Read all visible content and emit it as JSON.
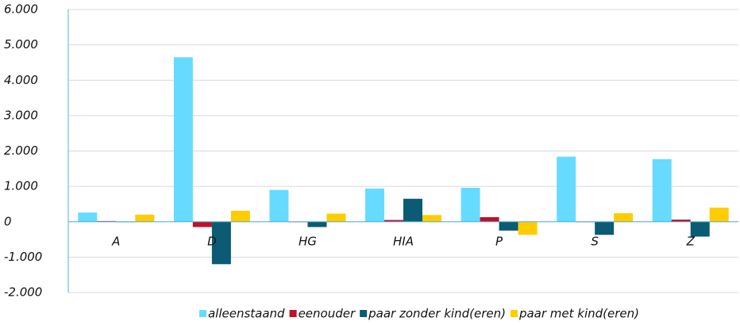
{
  "chart_data": {
    "type": "bar",
    "categories": [
      "A",
      "D",
      "HG",
      "HIA",
      "P",
      "S",
      "Z"
    ],
    "series": [
      {
        "name": "alleenstaand",
        "color": "#66dbff",
        "values": [
          260,
          4650,
          900,
          940,
          960,
          1840,
          1770
        ]
      },
      {
        "name": "eenouder",
        "color": "#c0102a",
        "values": [
          20,
          -150,
          0,
          50,
          130,
          0,
          60
        ]
      },
      {
        "name": "paar zonder kind(eren)",
        "color": "#0b5b74",
        "values": [
          0,
          -1200,
          -150,
          650,
          -250,
          -370,
          -420
        ]
      },
      {
        "name": "paar met kind(eren)",
        "color": "#ffcc00",
        "values": [
          200,
          310,
          230,
          190,
          -370,
          240,
          400
        ]
      }
    ],
    "ylim": [
      -2000,
      6000
    ],
    "yticks": [
      {
        "value": -2000,
        "label": "-2.000"
      },
      {
        "value": -1000,
        "label": "-1.000"
      },
      0,
      {
        "value": 1000,
        "label": "1.000"
      },
      {
        "value": 2000,
        "label": "2.000"
      },
      {
        "value": 3000,
        "label": "3.000"
      },
      {
        "value": 4000,
        "label": "4.000"
      },
      {
        "value": 5000,
        "label": "5.000"
      },
      {
        "value": 6000,
        "label": "6.000"
      }
    ],
    "grid": true,
    "legend": "bottom"
  }
}
